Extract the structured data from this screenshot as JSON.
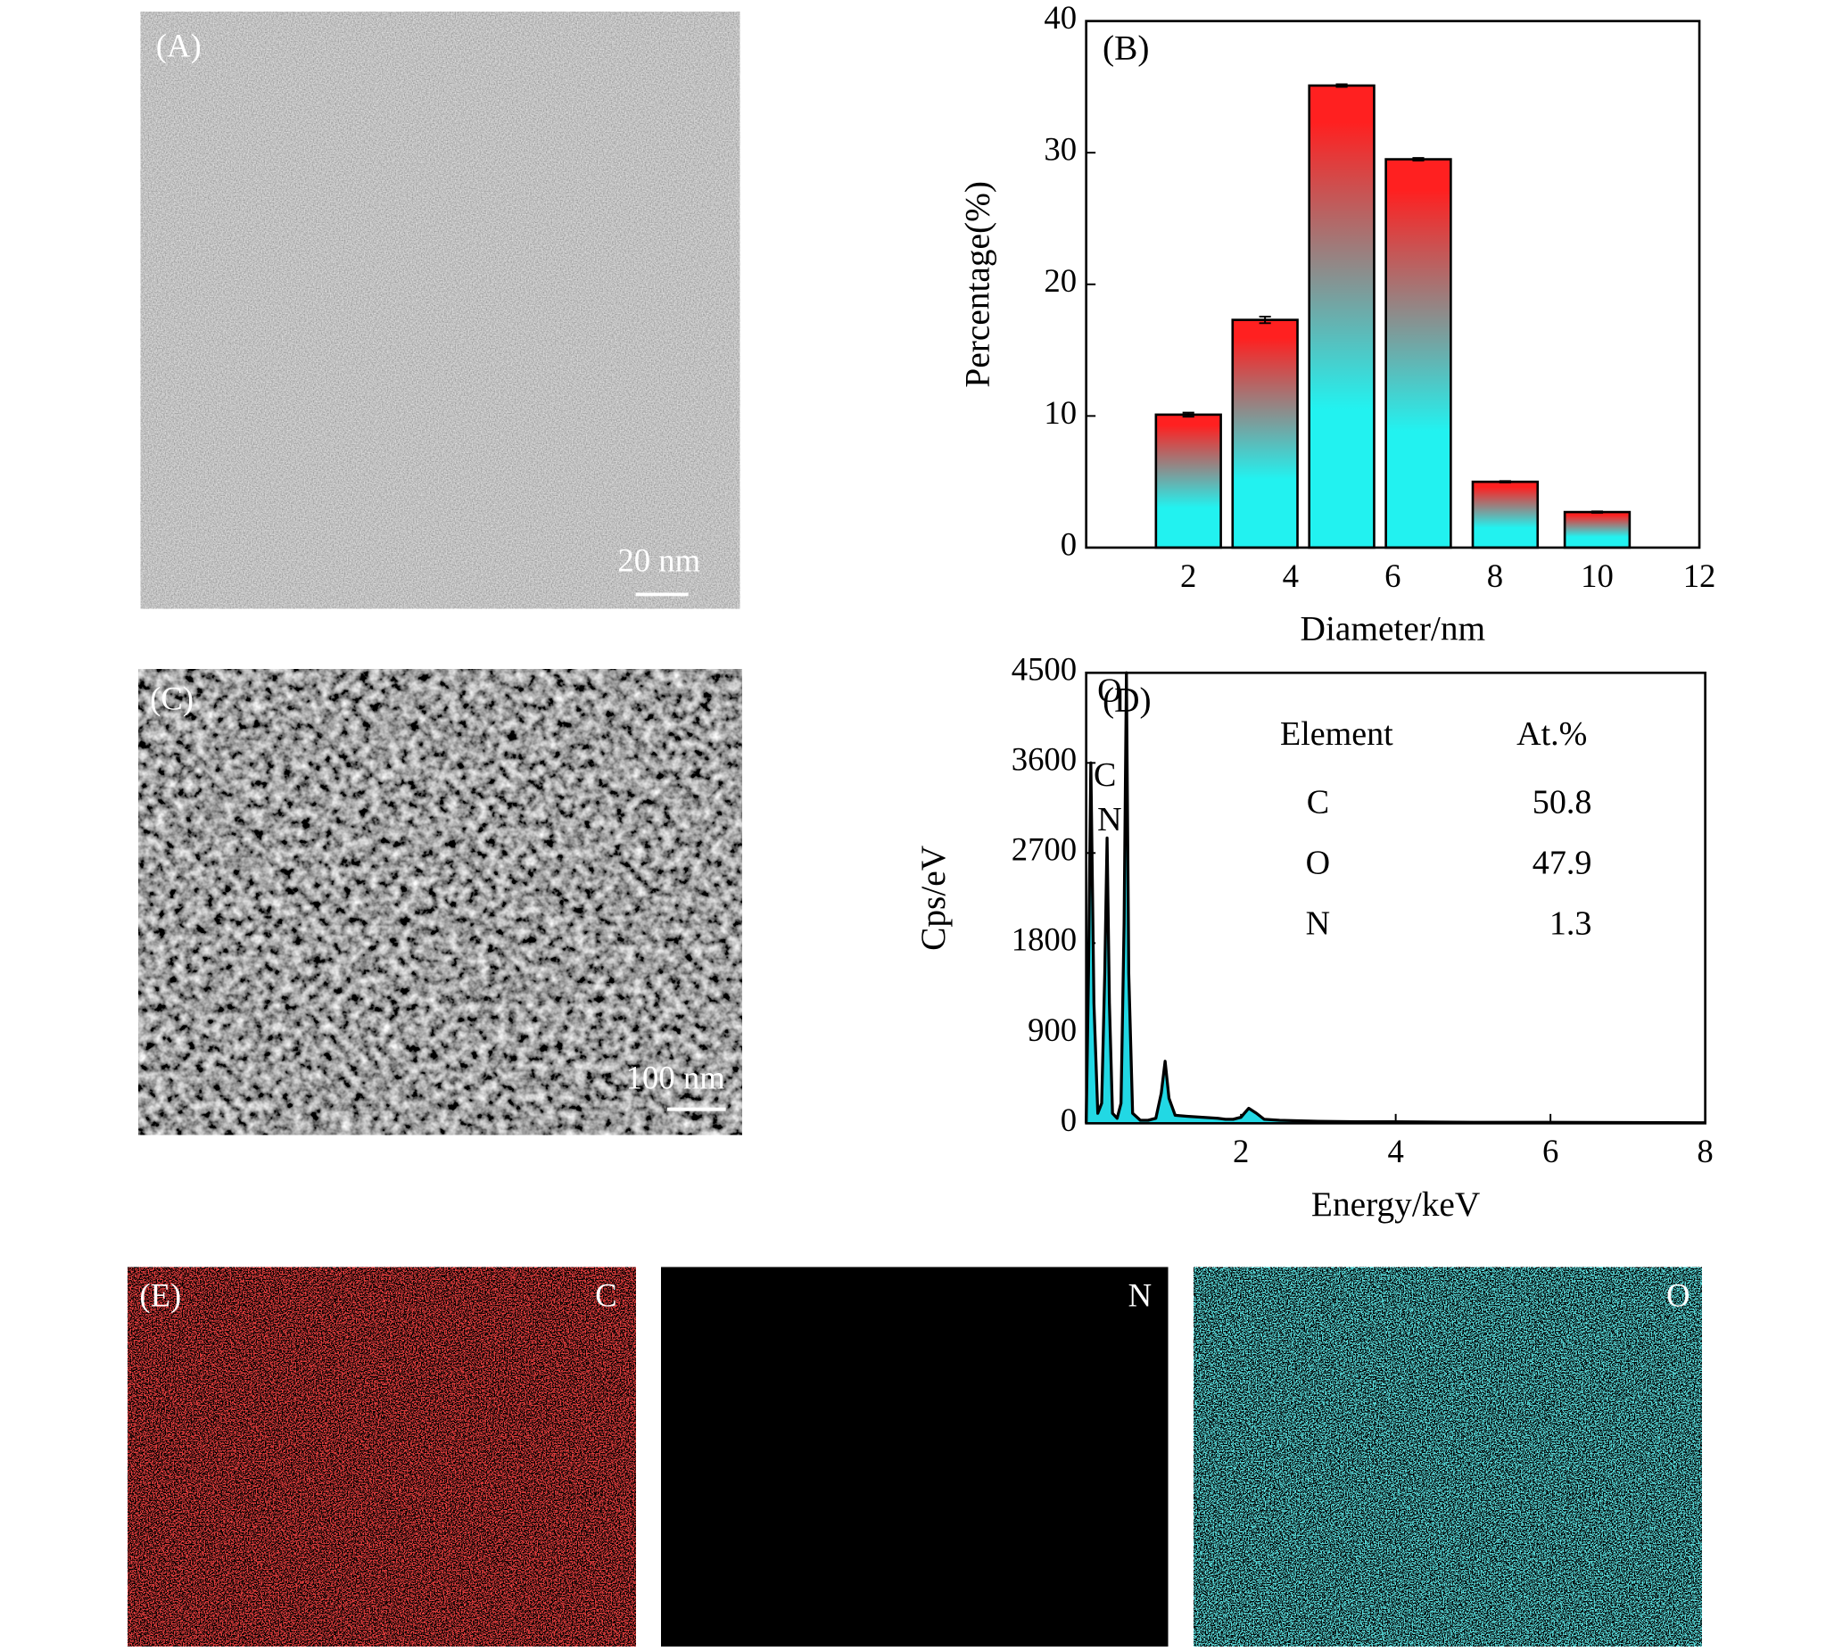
{
  "chart_data": [
    {
      "type": "bar",
      "panel_label": "(B)",
      "x_label": "Diameter/nm",
      "y_label": "Percentage(%)",
      "x": [
        2,
        3.5,
        5,
        6.5,
        8.2,
        10
      ],
      "values": [
        10.1,
        17.3,
        35.1,
        29.5,
        5.0,
        2.7
      ],
      "errors": [
        0.15,
        0.25,
        0.1,
        0.1,
        0.05,
        0.05
      ],
      "color_top": "#ff2020",
      "color_bottom": "#22f2f0",
      "xlim": [
        0,
        12
      ],
      "xticks": [
        2,
        4,
        6,
        8,
        10,
        12
      ],
      "ylim": [
        0,
        40
      ],
      "yticks": [
        0,
        10,
        20,
        30,
        40
      ]
    },
    {
      "type": "line",
      "panel_label": "(D)",
      "x_label": "Energy/keV",
      "y_label": "Cps/eV",
      "x": [
        0,
        0.03,
        0.06,
        0.1,
        0.15,
        0.2,
        0.24,
        0.27,
        0.3,
        0.34,
        0.4,
        0.45,
        0.49,
        0.52,
        0.55,
        0.6,
        0.7,
        0.8,
        0.9,
        0.97,
        1.02,
        1.07,
        1.15,
        1.3,
        1.5,
        1.7,
        1.8,
        1.9,
        2.0,
        2.1,
        2.2,
        2.3,
        2.5,
        3,
        3.5,
        4,
        5,
        6,
        7,
        8
      ],
      "values": [
        0,
        1500,
        3600,
        1200,
        100,
        200,
        1500,
        2850,
        1200,
        100,
        50,
        200,
        2000,
        4500,
        1500,
        100,
        30,
        30,
        50,
        300,
        620,
        250,
        80,
        70,
        60,
        50,
        40,
        40,
        60,
        150,
        100,
        40,
        30,
        20,
        15,
        15,
        10,
        10,
        8,
        5
      ],
      "color": "#000000",
      "fill": "#22d8e4",
      "xlim": [
        0,
        8
      ],
      "xticks": [
        2,
        4,
        6,
        8
      ],
      "ylim": [
        0,
        4500
      ],
      "yticks": [
        0,
        900,
        1800,
        2700,
        3600,
        4500
      ],
      "peak_labels": [
        "O",
        "C",
        "N"
      ],
      "table": {
        "header": [
          "Element",
          "At.%"
        ],
        "rows": [
          [
            "C",
            50.8
          ],
          [
            "O",
            47.9
          ],
          [
            "N",
            1.3
          ]
        ]
      }
    }
  ],
  "images": [
    {
      "label": "(A)",
      "scale_bar": "20 nm"
    },
    {
      "label": "(C)",
      "scale_bar": "100 nm"
    }
  ],
  "maps": {
    "label": "(E)",
    "elements": [
      "C",
      "N",
      "O"
    ]
  }
}
